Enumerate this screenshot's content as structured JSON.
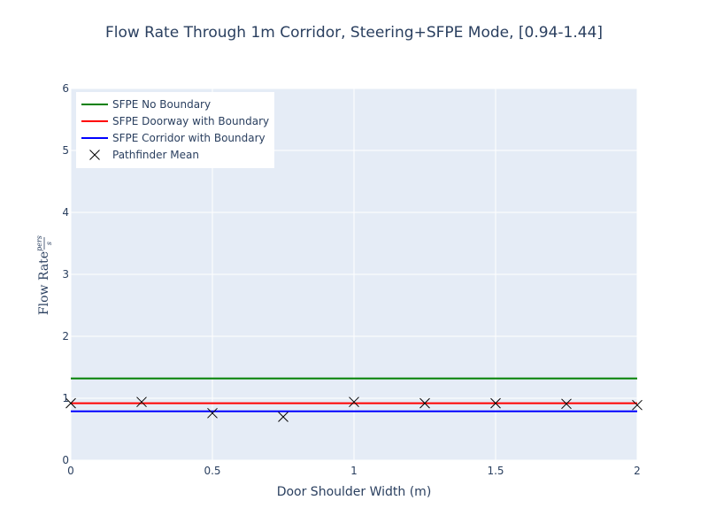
{
  "chart_data": {
    "type": "line",
    "title": "Flow Rate Through 1m Corridor, Steering+SFPE Mode, [0.94-1.44]",
    "xlabel": "Door Shoulder Width (m)",
    "ylabel": {
      "prefix": "Flow Rate",
      "numerator": "pers",
      "denominator": "s"
    },
    "xlim": [
      0,
      2
    ],
    "ylim": [
      0,
      6
    ],
    "x_ticks": [
      {
        "value": 0,
        "label": "0"
      },
      {
        "value": 0.5,
        "label": "0.5"
      },
      {
        "value": 1,
        "label": "1"
      },
      {
        "value": 1.5,
        "label": "1.5"
      },
      {
        "value": 2,
        "label": "2"
      }
    ],
    "y_ticks": [
      {
        "value": 0,
        "label": "0"
      },
      {
        "value": 1,
        "label": "1"
      },
      {
        "value": 2,
        "label": "2"
      },
      {
        "value": 3,
        "label": "3"
      },
      {
        "value": 4,
        "label": "4"
      },
      {
        "value": 5,
        "label": "5"
      },
      {
        "value": 6,
        "label": "6"
      }
    ],
    "grid": true,
    "legend_position": "top-left",
    "plot_background": "#e5ecf6",
    "series": [
      {
        "name": "SFPE No Boundary",
        "mode": "line",
        "color": "#008000",
        "x": [
          0,
          2
        ],
        "y": [
          1.32,
          1.32
        ]
      },
      {
        "name": "SFPE Doorway with Boundary",
        "mode": "line",
        "color": "#ff0000",
        "x": [
          0,
          2
        ],
        "y": [
          0.92,
          0.92
        ]
      },
      {
        "name": "SFPE Corridor with Boundary",
        "mode": "line",
        "color": "#0000ff",
        "x": [
          0,
          2
        ],
        "y": [
          0.79,
          0.79
        ]
      },
      {
        "name": "Pathfinder Mean",
        "mode": "markers",
        "marker": "x",
        "color": "#000000",
        "x": [
          0,
          0.25,
          0.5,
          0.75,
          1.0,
          1.25,
          1.5,
          1.75,
          2.0
        ],
        "y": [
          0.92,
          0.94,
          0.76,
          0.7,
          0.94,
          0.92,
          0.92,
          0.91,
          0.89
        ]
      }
    ]
  }
}
